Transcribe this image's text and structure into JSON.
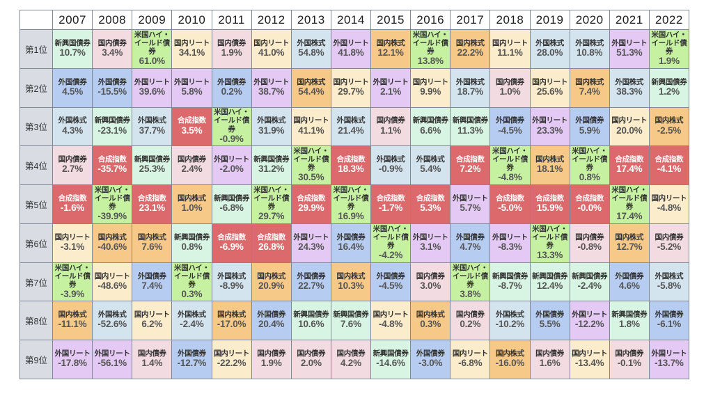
{
  "chart_data": {
    "type": "table",
    "corner_label": "",
    "years": [
      "2007",
      "2008",
      "2009",
      "2010",
      "2011",
      "2012",
      "2013",
      "2014",
      "2015",
      "2016",
      "2017",
      "2018",
      "2019",
      "2020",
      "2021",
      "2022"
    ],
    "rank_labels": [
      "第1位",
      "第2位",
      "第3位",
      "第4位",
      "第5位",
      "第6位",
      "第7位",
      "第8位",
      "第9位"
    ],
    "text": {
      "name_color": "#333333",
      "value_color": "#555555"
    },
    "palette": {
      "border": "#7f8894",
      "rank_column_bg": "#d9dde3",
      "header_bg": "#ffffff",
      "page_bg": "#ffffff"
    },
    "assets": {
      "emerging_bonds": {
        "label": "新興国債券",
        "color": "#d8f5e3"
      },
      "domestic_bonds": {
        "label": "国内債券",
        "color": "#f3dbe2"
      },
      "us_high_yield": {
        "label": "米国ハイ・イールド債券",
        "color": "#c5f1a1"
      },
      "domestic_reit": {
        "label": "国内リート",
        "color": "#fbeccb"
      },
      "domestic_stocks": {
        "label": "国内株式",
        "color": "#f6c988"
      },
      "foreign_stocks": {
        "label": "外国株式",
        "color": "#d3e4ef"
      },
      "foreign_bonds": {
        "label": "外国債券",
        "color": "#b6ccf1"
      },
      "foreign_reit": {
        "label": "外国リート",
        "color": "#e3c9f3"
      },
      "composite": {
        "label": "合成指数",
        "color": "#dc696b",
        "text_color": "#ffffff"
      }
    },
    "rankings": [
      [
        {
          "a": "emerging_bonds",
          "v": "10.7%",
          "n": 10.7
        },
        {
          "a": "foreign_bonds",
          "v": "4.5%",
          "n": 4.5
        },
        {
          "a": "foreign_stocks",
          "v": "4.3%",
          "n": 4.3
        },
        {
          "a": "domestic_bonds",
          "v": "2.7%",
          "n": 2.7
        },
        {
          "a": "composite",
          "v": "-1.6%",
          "n": -1.6
        },
        {
          "a": "domestic_reit",
          "v": "-3.1%",
          "n": -3.1
        },
        {
          "a": "us_high_yield",
          "v": "-3.9%",
          "n": -3.9
        },
        {
          "a": "domestic_stocks",
          "v": "-11.1%",
          "n": -11.1
        },
        {
          "a": "foreign_reit",
          "v": "-17.8%",
          "n": -17.8
        }
      ],
      [
        {
          "a": "domestic_bonds",
          "v": "3.4%",
          "n": 3.4
        },
        {
          "a": "foreign_bonds",
          "v": "-15.5%",
          "n": -15.5
        },
        {
          "a": "emerging_bonds",
          "v": "-23.1%",
          "n": -23.1
        },
        {
          "a": "composite",
          "v": "-35.7%",
          "n": -35.7
        },
        {
          "a": "us_high_yield",
          "v": "-39.9%",
          "n": -39.9
        },
        {
          "a": "domestic_stocks",
          "v": "-40.6%",
          "n": -40.6
        },
        {
          "a": "domestic_reit",
          "v": "-48.6%",
          "n": -48.6
        },
        {
          "a": "foreign_stocks",
          "v": "-52.6%",
          "n": -52.6
        },
        {
          "a": "foreign_reit",
          "v": "-56.1%",
          "n": -56.1
        }
      ],
      [
        {
          "a": "us_high_yield",
          "v": "61.0%",
          "n": 61.0
        },
        {
          "a": "foreign_reit",
          "v": "39.6%",
          "n": 39.6
        },
        {
          "a": "foreign_stocks",
          "v": "37.7%",
          "n": 37.7
        },
        {
          "a": "emerging_bonds",
          "v": "25.3%",
          "n": 25.3
        },
        {
          "a": "composite",
          "v": "23.1%",
          "n": 23.1
        },
        {
          "a": "domestic_stocks",
          "v": "7.6%",
          "n": 7.6
        },
        {
          "a": "foreign_bonds",
          "v": "7.4%",
          "n": 7.4
        },
        {
          "a": "domestic_reit",
          "v": "6.2%",
          "n": 6.2
        },
        {
          "a": "domestic_bonds",
          "v": "1.4%",
          "n": 1.4
        }
      ],
      [
        {
          "a": "domestic_reit",
          "v": "34.1%",
          "n": 34.1
        },
        {
          "a": "foreign_reit",
          "v": "5.8%",
          "n": 5.8
        },
        {
          "a": "composite",
          "v": "3.5%",
          "n": 3.5
        },
        {
          "a": "domestic_bonds",
          "v": "2.4%",
          "n": 2.4
        },
        {
          "a": "domestic_stocks",
          "v": "1.0%",
          "n": 1.0
        },
        {
          "a": "emerging_bonds",
          "v": "0.8%",
          "n": 0.8
        },
        {
          "a": "us_high_yield",
          "v": "0.3%",
          "n": 0.3
        },
        {
          "a": "foreign_stocks",
          "v": "-2.4%",
          "n": -2.4
        },
        {
          "a": "foreign_bonds",
          "v": "-12.7%",
          "n": -12.7
        }
      ],
      [
        {
          "a": "domestic_bonds",
          "v": "1.9%",
          "n": 1.9
        },
        {
          "a": "foreign_bonds",
          "v": "0.2%",
          "n": 0.2
        },
        {
          "a": "us_high_yield",
          "v": "-0.9%",
          "n": -0.9
        },
        {
          "a": "foreign_reit",
          "v": "-2.0%",
          "n": -2.0
        },
        {
          "a": "emerging_bonds",
          "v": "-6.8%",
          "n": -6.8
        },
        {
          "a": "composite",
          "v": "-6.9%",
          "n": -6.9
        },
        {
          "a": "foreign_stocks",
          "v": "-8.9%",
          "n": -8.9
        },
        {
          "a": "domestic_stocks",
          "v": "-17.0%",
          "n": -17.0
        },
        {
          "a": "domestic_reit",
          "v": "-22.2%",
          "n": -22.2
        }
      ],
      [
        {
          "a": "domestic_reit",
          "v": "41.0%",
          "n": 41.0
        },
        {
          "a": "foreign_reit",
          "v": "38.7%",
          "n": 38.7
        },
        {
          "a": "foreign_stocks",
          "v": "31.9%",
          "n": 31.9
        },
        {
          "a": "emerging_bonds",
          "v": "31.2%",
          "n": 31.2
        },
        {
          "a": "us_high_yield",
          "v": "29.7%",
          "n": 29.7
        },
        {
          "a": "composite",
          "v": "26.8%",
          "n": 26.8
        },
        {
          "a": "domestic_stocks",
          "v": "20.9%",
          "n": 20.9
        },
        {
          "a": "foreign_bonds",
          "v": "20.4%",
          "n": 20.4
        },
        {
          "a": "domestic_bonds",
          "v": "1.9%",
          "n": 1.9
        }
      ],
      [
        {
          "a": "foreign_stocks",
          "v": "54.8%",
          "n": 54.8
        },
        {
          "a": "domestic_stocks",
          "v": "54.4%",
          "n": 54.4
        },
        {
          "a": "domestic_reit",
          "v": "41.1%",
          "n": 41.1
        },
        {
          "a": "us_high_yield",
          "v": "30.5%",
          "n": 30.5
        },
        {
          "a": "composite",
          "v": "29.9%",
          "n": 29.9
        },
        {
          "a": "foreign_reit",
          "v": "24.3%",
          "n": 24.3
        },
        {
          "a": "foreign_bonds",
          "v": "22.7%",
          "n": 22.7
        },
        {
          "a": "emerging_bonds",
          "v": "10.6%",
          "n": 10.6
        },
        {
          "a": "domestic_bonds",
          "v": "2.0%",
          "n": 2.0
        }
      ],
      [
        {
          "a": "foreign_reit",
          "v": "41.8%",
          "n": 41.8
        },
        {
          "a": "domestic_reit",
          "v": "29.7%",
          "n": 29.7
        },
        {
          "a": "foreign_stocks",
          "v": "21.4%",
          "n": 21.4
        },
        {
          "a": "composite",
          "v": "18.3%",
          "n": 18.3
        },
        {
          "a": "us_high_yield",
          "v": "16.9%",
          "n": 16.9
        },
        {
          "a": "foreign_bonds",
          "v": "16.4%",
          "n": 16.4
        },
        {
          "a": "domestic_stocks",
          "v": "10.3%",
          "n": 10.3
        },
        {
          "a": "emerging_bonds",
          "v": "7.6%",
          "n": 7.6
        },
        {
          "a": "domestic_bonds",
          "v": "4.2%",
          "n": 4.2
        }
      ],
      [
        {
          "a": "domestic_stocks",
          "v": "12.1%",
          "n": 12.1
        },
        {
          "a": "foreign_reit",
          "v": "2.1%",
          "n": 2.1
        },
        {
          "a": "domestic_bonds",
          "v": "1.1%",
          "n": 1.1
        },
        {
          "a": "foreign_stocks",
          "v": "-0.9%",
          "n": -0.9
        },
        {
          "a": "composite",
          "v": "-1.7%",
          "n": -1.7
        },
        {
          "a": "us_high_yield",
          "v": "-4.2%",
          "n": -4.2
        },
        {
          "a": "foreign_bonds",
          "v": "-4.5%",
          "n": -4.5
        },
        {
          "a": "domestic_reit",
          "v": "-4.8%",
          "n": -4.8
        },
        {
          "a": "emerging_bonds",
          "v": "-14.6%",
          "n": -14.6
        }
      ],
      [
        {
          "a": "us_high_yield",
          "v": "13.8%",
          "n": 13.8
        },
        {
          "a": "domestic_reit",
          "v": "9.9%",
          "n": 9.9
        },
        {
          "a": "emerging_bonds",
          "v": "6.6%",
          "n": 6.6
        },
        {
          "a": "foreign_stocks",
          "v": "5.4%",
          "n": 5.4
        },
        {
          "a": "composite",
          "v": "5.3%",
          "n": 5.3
        },
        {
          "a": "foreign_reit",
          "v": "3.1%",
          "n": 3.1
        },
        {
          "a": "domestic_bonds",
          "v": "3.0%",
          "n": 3.0
        },
        {
          "a": "domestic_stocks",
          "v": "0.3%",
          "n": 0.3
        },
        {
          "a": "foreign_bonds",
          "v": "-3.0%",
          "n": -3.0
        }
      ],
      [
        {
          "a": "domestic_stocks",
          "v": "22.2%",
          "n": 22.2
        },
        {
          "a": "foreign_stocks",
          "v": "18.7%",
          "n": 18.7
        },
        {
          "a": "emerging_bonds",
          "v": "11.3%",
          "n": 11.3
        },
        {
          "a": "composite",
          "v": "7.2%",
          "n": 7.2
        },
        {
          "a": "foreign_reit",
          "v": "5.7%",
          "n": 5.7
        },
        {
          "a": "foreign_bonds",
          "v": "4.7%",
          "n": 4.7
        },
        {
          "a": "us_high_yield",
          "v": "3.8%",
          "n": 3.8
        },
        {
          "a": "domestic_bonds",
          "v": "0.2%",
          "n": 0.2
        },
        {
          "a": "domestic_reit",
          "v": "-6.8%",
          "n": -6.8
        }
      ],
      [
        {
          "a": "domestic_reit",
          "v": "11.1%",
          "n": 11.1
        },
        {
          "a": "domestic_bonds",
          "v": "1.0%",
          "n": 1.0
        },
        {
          "a": "foreign_bonds",
          "v": "-4.5%",
          "n": -4.5
        },
        {
          "a": "us_high_yield",
          "v": "-4.8%",
          "n": -4.8
        },
        {
          "a": "composite",
          "v": "-5.0%",
          "n": -5.0
        },
        {
          "a": "foreign_reit",
          "v": "-8.3%",
          "n": -8.3
        },
        {
          "a": "emerging_bonds",
          "v": "-8.7%",
          "n": -8.7
        },
        {
          "a": "foreign_stocks",
          "v": "-10.2%",
          "n": -10.2
        },
        {
          "a": "domestic_stocks",
          "v": "-16.0%",
          "n": -16.0
        }
      ],
      [
        {
          "a": "foreign_stocks",
          "v": "28.0%",
          "n": 28.0
        },
        {
          "a": "domestic_reit",
          "v": "25.6%",
          "n": 25.6
        },
        {
          "a": "foreign_reit",
          "v": "23.3%",
          "n": 23.3
        },
        {
          "a": "domestic_stocks",
          "v": "18.1%",
          "n": 18.1
        },
        {
          "a": "composite",
          "v": "15.9%",
          "n": 15.9
        },
        {
          "a": "us_high_yield",
          "v": "13.3%",
          "n": 13.3
        },
        {
          "a": "emerging_bonds",
          "v": "12.4%",
          "n": 12.4
        },
        {
          "a": "foreign_bonds",
          "v": "5.5%",
          "n": 5.5
        },
        {
          "a": "domestic_bonds",
          "v": "1.6%",
          "n": 1.6
        }
      ],
      [
        {
          "a": "foreign_stocks",
          "v": "10.8%",
          "n": 10.8
        },
        {
          "a": "domestic_stocks",
          "v": "7.4%",
          "n": 7.4
        },
        {
          "a": "foreign_bonds",
          "v": "5.9%",
          "n": 5.9
        },
        {
          "a": "us_high_yield",
          "v": "0.8%",
          "n": 0.8
        },
        {
          "a": "composite",
          "v": "-0.0%",
          "n": 0.0
        },
        {
          "a": "domestic_bonds",
          "v": "-0.8%",
          "n": -0.8
        },
        {
          "a": "emerging_bonds",
          "v": "-2.4%",
          "n": -2.4
        },
        {
          "a": "foreign_reit",
          "v": "-12.2%",
          "n": -12.2
        },
        {
          "a": "domestic_reit",
          "v": "-13.4%",
          "n": -13.4
        }
      ],
      [
        {
          "a": "foreign_reit",
          "v": "51.3%",
          "n": 51.3
        },
        {
          "a": "foreign_stocks",
          "v": "38.3%",
          "n": 38.3
        },
        {
          "a": "domestic_reit",
          "v": "20.0%",
          "n": 20.0
        },
        {
          "a": "composite",
          "v": "17.4%",
          "n": 17.4
        },
        {
          "a": "us_high_yield",
          "v": "17.4%",
          "n": 17.4
        },
        {
          "a": "domestic_stocks",
          "v": "12.7%",
          "n": 12.7
        },
        {
          "a": "foreign_bonds",
          "v": "4.6%",
          "n": 4.6
        },
        {
          "a": "emerging_bonds",
          "v": "1.8%",
          "n": 1.8
        },
        {
          "a": "domestic_bonds",
          "v": "-0.1%",
          "n": -0.1
        }
      ],
      [
        {
          "a": "us_high_yield",
          "v": "1.9%",
          "n": 1.9
        },
        {
          "a": "emerging_bonds",
          "v": "1.2%",
          "n": 1.2
        },
        {
          "a": "domestic_stocks",
          "v": "-2.5%",
          "n": -2.5
        },
        {
          "a": "composite",
          "v": "-4.1%",
          "n": -4.1
        },
        {
          "a": "domestic_reit",
          "v": "-4.8%",
          "n": -4.8
        },
        {
          "a": "domestic_bonds",
          "v": "-5.2%",
          "n": -5.2
        },
        {
          "a": "foreign_stocks",
          "v": "-5.8%",
          "n": -5.8
        },
        {
          "a": "foreign_bonds",
          "v": "-6.1%",
          "n": -6.1
        },
        {
          "a": "foreign_reit",
          "v": "-13.7%",
          "n": -13.7
        }
      ]
    ]
  }
}
